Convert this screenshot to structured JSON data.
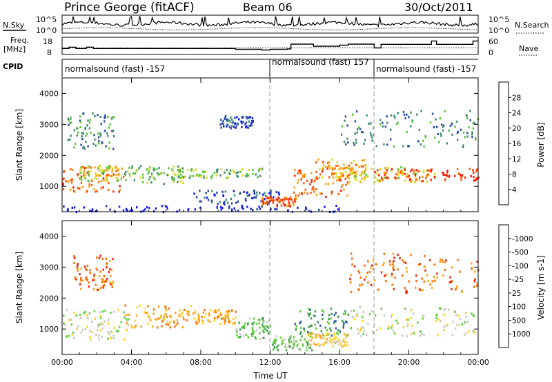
{
  "header": {
    "station": "Prince George (fitACF)",
    "beam": "Beam 06",
    "date": "30/Oct/2011"
  },
  "chart_data": [
    {
      "type": "line",
      "title": "",
      "left_label": "N.Sky",
      "right_label": "N.Search",
      "left_ticks": [
        "10^5",
        "10^0"
      ],
      "right_ticks": [
        "10^5",
        "10^0"
      ],
      "x": [
        0,
        24
      ],
      "ylim": [
        0,
        5
      ],
      "log_scale": true
    },
    {
      "type": "line",
      "title": "",
      "left_label": "Freq.",
      "left_unit": "[MHz]",
      "right_label": "Nave",
      "left_ticks": [
        "18",
        "8"
      ],
      "right_ticks": [
        "60",
        "0"
      ],
      "ylim_left": [
        8,
        18
      ],
      "ylim_right": [
        0,
        60
      ],
      "freq_steps": [
        {
          "t": 0.0,
          "f": 11.5
        },
        {
          "t": 0.4,
          "f": 12.2
        },
        {
          "t": 0.8,
          "f": 11.5
        },
        {
          "t": 1.4,
          "f": 12.3
        },
        {
          "t": 1.8,
          "f": 11.5
        },
        {
          "t": 10.0,
          "f": 11.0
        },
        {
          "t": 11.5,
          "f": 10.6
        },
        {
          "t": 12.0,
          "f": 11.0
        },
        {
          "t": 13.0,
          "f": 11.2
        },
        {
          "t": 13.2,
          "f": 14.0
        },
        {
          "t": 14.5,
          "f": 12.8
        },
        {
          "t": 16.0,
          "f": 13.4
        },
        {
          "t": 16.5,
          "f": 14.0
        },
        {
          "t": 18.0,
          "f": 11.8
        },
        {
          "t": 18.4,
          "f": 13.9
        },
        {
          "t": 21.3,
          "f": 15.8
        },
        {
          "t": 21.6,
          "f": 13.9
        },
        {
          "t": 23.7,
          "f": 15.8
        },
        {
          "t": 24.0,
          "f": 15.8
        }
      ],
      "nave_level": 11.8
    },
    {
      "type": "table",
      "label": "CPID",
      "segments": [
        {
          "start": 0,
          "end": 12,
          "text": "normalsound (fast) -157"
        },
        {
          "start": 12,
          "end": 18,
          "text": "normalsound (fast) 157"
        },
        {
          "start": 18,
          "end": 24,
          "text": "normalsound (fast) -157"
        }
      ]
    },
    {
      "type": "heatmap",
      "title": "",
      "ylabel": "Slant Range [km]",
      "xlim": [
        0,
        24
      ],
      "ylim": [
        180,
        4500
      ],
      "yticks": [
        1000,
        2000,
        3000,
        4000
      ],
      "colorbar": {
        "label": "Power [dB]",
        "ticks": [
          "4",
          "8",
          "12",
          "16",
          "20",
          "24",
          "28"
        ],
        "colors": [
          "#0a14ff",
          "#2a4aa8",
          "#3d8a6a",
          "#58c43a",
          "#d8d820",
          "#ffa010",
          "#ff5a00",
          "#ff1a00"
        ]
      },
      "bands": [
        {
          "t0": 0.0,
          "t1": 3.5,
          "r0": 850,
          "r1": 1650,
          "cidx": 6
        },
        {
          "t0": 1.0,
          "t1": 3.5,
          "r0": 1200,
          "r1": 1700,
          "cidx": 4
        },
        {
          "t0": 3.5,
          "t1": 7.0,
          "r0": 1100,
          "r1": 1700,
          "cidx": 3
        },
        {
          "t0": 6.5,
          "t1": 11.5,
          "r0": 1300,
          "r1": 1600,
          "cidx": 3
        },
        {
          "t0": 7.5,
          "t1": 12.5,
          "r0": 450,
          "r1": 900,
          "cidx": 1
        },
        {
          "t0": 11.5,
          "t1": 13.5,
          "r0": 380,
          "r1": 700,
          "cidx": 6
        },
        {
          "t0": 13.3,
          "t1": 16.5,
          "r0": 650,
          "r1": 1650,
          "cidx": 6
        },
        {
          "t0": 14.5,
          "t1": 17.5,
          "r0": 1300,
          "r1": 1900,
          "cidx": 5
        },
        {
          "t0": 16.5,
          "t1": 21.5,
          "r0": 1150,
          "r1": 1650,
          "cidx": 4
        },
        {
          "t0": 18.0,
          "t1": 24.0,
          "r0": 1200,
          "r1": 1600,
          "cidx": 7
        },
        {
          "t0": 16.0,
          "t1": 24.0,
          "r0": 2300,
          "r1": 3500,
          "cidx": 2
        },
        {
          "t0": 0.3,
          "t1": 3.0,
          "r0": 2200,
          "r1": 3400,
          "cidx": 2
        },
        {
          "t0": 9.0,
          "t1": 11.0,
          "r0": 2900,
          "r1": 3300,
          "cidx": 1
        },
        {
          "t0": 0.0,
          "t1": 16.0,
          "r0": 200,
          "r1": 420,
          "cidx": 0
        }
      ]
    },
    {
      "type": "heatmap",
      "title": "",
      "ylabel": "Slant Range [km]",
      "xlabel": "Time UT",
      "xlim": [
        0,
        24
      ],
      "ylim": [
        180,
        4500
      ],
      "yticks": [
        1000,
        2000,
        3000,
        4000
      ],
      "xticks": [
        "00:00",
        "04:00",
        "08:00",
        "12:00",
        "16:00",
        "20:00",
        "00:00"
      ],
      "colorbar": {
        "label": "Velocity [m s-1]",
        "ticks": [
          "1000",
          "500",
          "100",
          "25",
          "-25",
          "-100",
          "-500",
          "-1000"
        ],
        "colors": [
          "#1020d0",
          "#2a5aa0",
          "#3c9c50",
          "#5ccc3a",
          "#c8c8c0",
          "#ffd020",
          "#ffa010",
          "#ff6a00",
          "#ff1a00"
        ]
      },
      "bands": [
        {
          "t0": 0.0,
          "t1": 3.8,
          "r0": 700,
          "r1": 1650,
          "cidx": 4
        },
        {
          "t0": 3.5,
          "t1": 7.5,
          "r0": 1050,
          "r1": 1800,
          "cidx": 6
        },
        {
          "t0": 7.5,
          "t1": 10.0,
          "r0": 1200,
          "r1": 1650,
          "cidx": 6
        },
        {
          "t0": 10.0,
          "t1": 12.0,
          "r0": 700,
          "r1": 1400,
          "cidx": 3
        },
        {
          "t0": 12.0,
          "t1": 14.5,
          "r0": 350,
          "r1": 800,
          "cidx": 3
        },
        {
          "t0": 13.3,
          "t1": 16.5,
          "r0": 800,
          "r1": 1700,
          "cidx": 2
        },
        {
          "t0": 14.0,
          "t1": 16.5,
          "r0": 450,
          "r1": 900,
          "cidx": 5
        },
        {
          "t0": 16.5,
          "t1": 24.0,
          "r0": 800,
          "r1": 1750,
          "cidx": 4
        },
        {
          "t0": 0.5,
          "t1": 3.0,
          "r0": 2300,
          "r1": 3400,
          "cidx": 7
        },
        {
          "t0": 16.5,
          "t1": 24.0,
          "r0": 2200,
          "r1": 3500,
          "cidx": 7
        }
      ]
    }
  ]
}
